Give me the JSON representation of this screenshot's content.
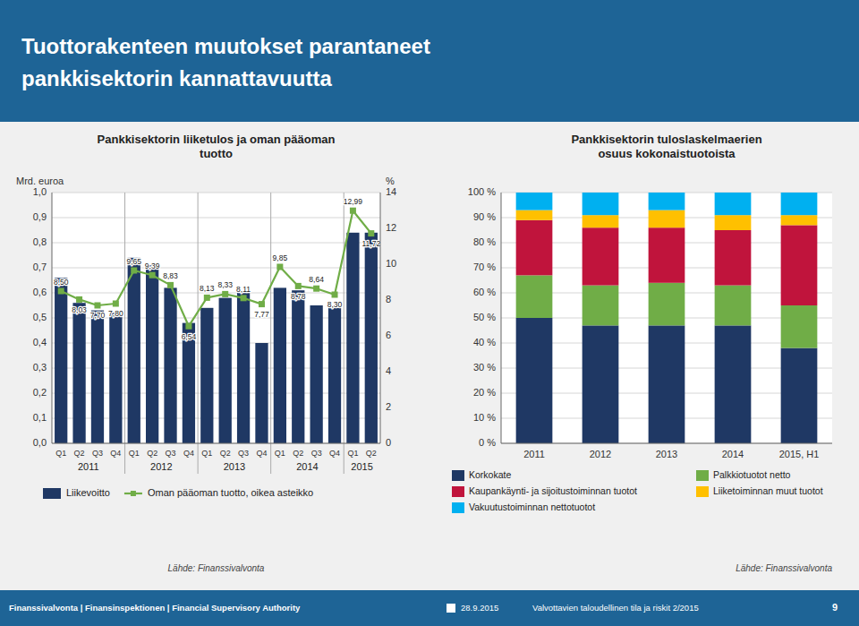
{
  "title": "Tuottorakenteen muutokset parantaneet\npankkisektorin kannattavuutta",
  "annotations": [
    "Finanssivalvonta | Finansinspektionen | Financial Supervisory Authority",
    "28.9.2015",
    "Valvottavien taloudellinen tila ja riskit 2/2015",
    "9"
  ],
  "chart_data": [
    {
      "type": "bar",
      "title": "Pankkisektorin liiketulos ja oman pääoman\ntuotto",
      "ylabel": "Mrd. euroa",
      "y2label": "%",
      "categories": [
        "Q1",
        "Q2",
        "Q3",
        "Q4",
        "Q1",
        "Q2",
        "Q3",
        "Q4",
        "Q1",
        "Q2",
        "Q3",
        "Q4",
        "Q1",
        "Q2",
        "Q3",
        "Q4",
        "Q1",
        "Q2"
      ],
      "x_groups": [
        "2011",
        "2012",
        "2013",
        "2014",
        "2015"
      ],
      "series": [
        {
          "name": "Liikevoitto",
          "type": "bar",
          "color": "#1f3864",
          "values": [
            0.66,
            0.56,
            0.53,
            0.52,
            0.74,
            0.71,
            0.62,
            0.48,
            0.54,
            0.58,
            0.6,
            0.4,
            0.62,
            0.61,
            0.55,
            0.54,
            0.84,
            0.84
          ]
        },
        {
          "name": "Oman pääoman tuotto, oikea asteikko",
          "type": "line",
          "axis": "y2",
          "color": "#70ad47",
          "marker": "square",
          "data_labels": true,
          "values": [
            8.5,
            8.03,
            7.7,
            7.8,
            9.65,
            9.39,
            8.83,
            6.54,
            8.13,
            8.33,
            8.11,
            7.77,
            9.85,
            8.78,
            8.64,
            8.3,
            12.99,
            11.72
          ],
          "value_labels": [
            "8,50",
            "8,03",
            "7,70",
            "7,80",
            "9,65",
            "9,39",
            "8,83",
            "6,54",
            "8,13",
            "8,33",
            "8,11",
            "7,77",
            "9,85",
            "8,78",
            "8,64",
            "8,30",
            "12,99",
            "11,72"
          ]
        }
      ],
      "ylim": [
        0,
        1.0
      ],
      "yticks": [
        {
          "value": 0.0,
          "label": "0,0"
        },
        {
          "value": 0.1,
          "label": "0,1"
        },
        {
          "value": 0.2,
          "label": "0,2"
        },
        {
          "value": 0.3,
          "label": "0,3"
        },
        {
          "value": 0.4,
          "label": "0,4"
        },
        {
          "value": 0.5,
          "label": "0,5"
        },
        {
          "value": 0.6,
          "label": "0,6"
        },
        {
          "value": 0.7,
          "label": "0,7"
        },
        {
          "value": 0.8,
          "label": "0,8"
        },
        {
          "value": 0.9,
          "label": "0,9"
        },
        {
          "value": 1.0,
          "label": "1,0"
        }
      ],
      "y2lim": [
        0,
        14
      ],
      "y2ticks": [
        0,
        2,
        4,
        6,
        8,
        10,
        12,
        14
      ],
      "grid": true,
      "legend": "bottom",
      "annotations": [
        "Lähde: Finanssivalvonta"
      ]
    },
    {
      "type": "bar",
      "stacked": true,
      "title": "Pankkisektorin tuloslaskelmaerien\nosuus kokonaistuotoista",
      "categories": [
        "2011",
        "2012",
        "2013",
        "2014",
        "2015, H1"
      ],
      "series": [
        {
          "name": "Korkokate",
          "color": "#1f3864",
          "values": [
            50,
            47,
            47,
            47,
            38
          ]
        },
        {
          "name": "Palkkiotuotot netto",
          "color": "#70ad47",
          "values": [
            17,
            16,
            17,
            16,
            17
          ]
        },
        {
          "name": "Kaupankäynti- ja sijoitustoiminnan tuotot",
          "color": "#c0143c",
          "values": [
            22,
            23,
            22,
            22,
            32
          ]
        },
        {
          "name": "Liiketoiminnan muut tuotot",
          "color": "#ffc000",
          "values": [
            4,
            5,
            7,
            6,
            4
          ]
        },
        {
          "name": "Vakuutustoiminnan nettotuotot",
          "color": "#00b0f0",
          "values": [
            7,
            9,
            7,
            9,
            9
          ]
        }
      ],
      "ylim": [
        0,
        100
      ],
      "yticks": [
        {
          "value": 0,
          "label": "0 %"
        },
        {
          "value": 10,
          "label": "10 %"
        },
        {
          "value": 20,
          "label": "20 %"
        },
        {
          "value": 30,
          "label": "30 %"
        },
        {
          "value": 40,
          "label": "40 %"
        },
        {
          "value": 50,
          "label": "50 %"
        },
        {
          "value": 60,
          "label": "60 %"
        },
        {
          "value": 70,
          "label": "70 %"
        },
        {
          "value": 80,
          "label": "80 %"
        },
        {
          "value": 90,
          "label": "90 %"
        },
        {
          "value": 100,
          "label": "100 %"
        }
      ],
      "grid": true,
      "legend": "bottom",
      "annotations": [
        "Lähde: Finanssivalvonta"
      ]
    }
  ]
}
